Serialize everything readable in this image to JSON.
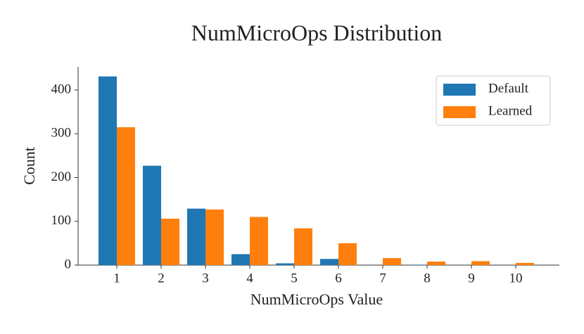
{
  "chart_data": {
    "type": "grouped_bar",
    "title": "NumMicroOps Distribution",
    "x_label": "NumMicroOps Value",
    "y_label": "Count",
    "categories": [
      "1",
      "2",
      "3",
      "4",
      "5",
      "6",
      "7",
      "8",
      "9",
      "10"
    ],
    "series": [
      {
        "name": "Default",
        "color": "#1f77b4",
        "values": [
          431,
          227,
          129,
          25,
          4,
          14,
          0,
          1,
          0,
          0
        ]
      },
      {
        "name": "Learned",
        "color": "#ff7f0e",
        "values": [
          315,
          106,
          127,
          110,
          84,
          50,
          16,
          8,
          9,
          5
        ]
      }
    ],
    "ylim": [
      0,
      453
    ],
    "yticks": [
      0,
      100,
      200,
      300,
      400
    ],
    "legend": "upper right"
  }
}
